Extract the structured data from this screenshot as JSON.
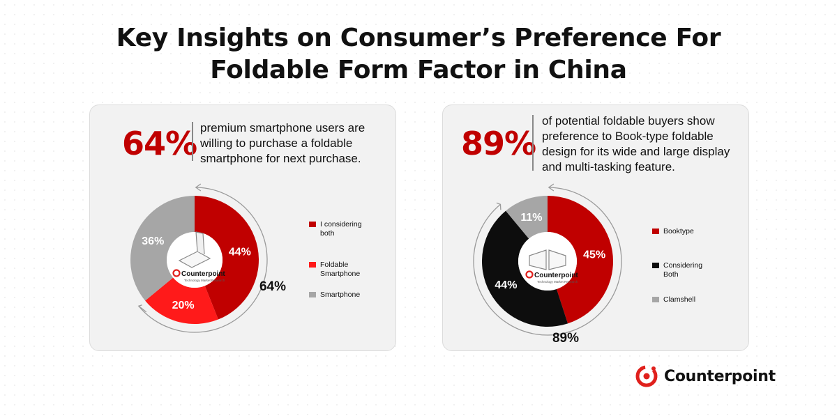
{
  "title": {
    "line1": "Key Insights on Consumer’s Preference For",
    "line2": "Foldable Form Factor in China"
  },
  "left_panel": {
    "headline_value": "64%",
    "statement_lines": [
      "premium smartphone users are",
      "willing to purchase a foldable",
      "smartphone for next purchase."
    ],
    "arc_label": "64%"
  },
  "right_panel": {
    "headline_value": "89%",
    "statement_lines": [
      "of potential foldable buyers show",
      "preference to Book-type foldable",
      "design for its wide and large display",
      "and multi-tasking feature."
    ],
    "arc_label": "89%"
  },
  "center_logo": {
    "name": "Counterpoint",
    "tagline": "Technology Market Research"
  },
  "brand": {
    "name": "Counterpoint"
  },
  "colors": {
    "accent": "#c00000",
    "bright_red": "#ff1a1a",
    "gray": "#a6a6a6",
    "black": "#0d0d0d"
  },
  "chart_data": [
    {
      "type": "pie",
      "variant": "donut",
      "categories": [
        "I considering both",
        "Foldable Smartphone",
        "Smartphone"
      ],
      "values": [
        44,
        20,
        36
      ],
      "labels": [
        "44%",
        "20%",
        "36%"
      ],
      "colors": [
        "#c00000",
        "#ff1a1a",
        "#a6a6a6"
      ],
      "legend_position": "right",
      "annotation": "64%"
    },
    {
      "type": "pie",
      "variant": "donut",
      "categories": [
        "Booktype",
        "Considering Both",
        "Clamshell"
      ],
      "values": [
        45,
        44,
        11
      ],
      "labels": [
        "45%",
        "44%",
        "11%"
      ],
      "colors": [
        "#c00000",
        "#0d0d0d",
        "#a6a6a6"
      ],
      "legend_position": "right",
      "annotation": "89%"
    }
  ]
}
